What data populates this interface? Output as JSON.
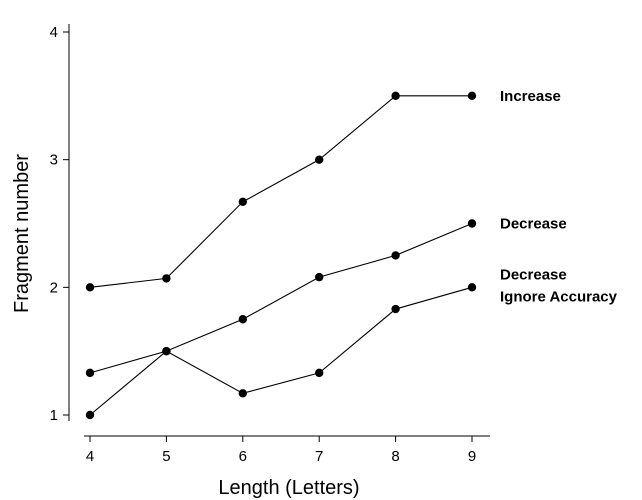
{
  "chart_data": {
    "type": "line",
    "title": "",
    "xlabel": "Length (Letters)",
    "ylabel": "Fragment number",
    "x": [
      4,
      5,
      6,
      7,
      8,
      9
    ],
    "xlim": [
      4,
      9
    ],
    "ylim": [
      1,
      4
    ],
    "xticks": [
      "4",
      "5",
      "6",
      "7",
      "8",
      "9"
    ],
    "yticks": [
      "1",
      "2",
      "3",
      "4"
    ],
    "grid": false,
    "legend": "direct labels at right end of lines",
    "series": [
      {
        "name": "Increase",
        "values": [
          2.0,
          2.07,
          2.67,
          3.0,
          3.5,
          3.5
        ]
      },
      {
        "name": "Decrease",
        "values": [
          1.33,
          1.5,
          1.75,
          2.08,
          2.25,
          2.5
        ]
      },
      {
        "name": "Decrease Ignore Accuracy",
        "label_lines": [
          "Decrease",
          "Ignore Accuracy"
        ],
        "values": [
          1.0,
          1.5,
          1.17,
          1.33,
          1.83,
          2.0
        ]
      }
    ]
  }
}
